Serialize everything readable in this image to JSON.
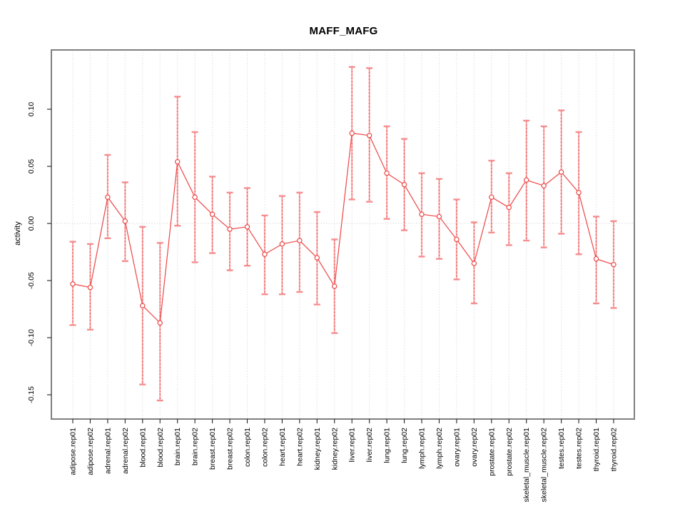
{
  "chart_data": {
    "type": "line",
    "title": "MAFF_MAFG",
    "ylabel": "activity",
    "xlabel": "",
    "legend": "none",
    "grid": "dotted vertical line per category and dotted horizontal line at zero",
    "ylim": [
      -0.171,
      0.152
    ],
    "yticks": [
      {
        "value": 0.1,
        "label": "0.10"
      },
      {
        "value": 0.05,
        "label": "0.05"
      },
      {
        "value": 0.0,
        "label": "0.00"
      },
      {
        "value": -0.05,
        "label": "-0.05"
      },
      {
        "value": -0.1,
        "label": "-0.10"
      },
      {
        "value": -0.15,
        "label": "-0.15"
      }
    ],
    "categories": [
      "adipose.rep01",
      "adipose.rep02",
      "adrenal.rep01",
      "adrenal.rep02",
      "blood.rep01",
      "blood.rep02",
      "brain.rep01",
      "brain.rep02",
      "breast.rep01",
      "breast.rep02",
      "colon.rep01",
      "colon.rep02",
      "heart.rep01",
      "heart.rep02",
      "kidney.rep01",
      "kidney.rep02",
      "liver.rep01",
      "liver.rep02",
      "lung.rep01",
      "lung.rep02",
      "lymph.rep01",
      "lymph.rep02",
      "ovary.rep01",
      "ovary.rep02",
      "prostate.rep01",
      "prostate.rep02",
      "skeletal_muscle.rep01",
      "skeletal_muscle.rep02",
      "testes.rep01",
      "testes.rep02",
      "thyroid.rep01",
      "thyroid.rep02"
    ],
    "series": [
      {
        "name": "activity",
        "means": [
          -0.053,
          -0.056,
          0.023,
          0.002,
          -0.072,
          -0.087,
          0.054,
          0.023,
          0.008,
          -0.005,
          -0.003,
          -0.027,
          -0.018,
          -0.015,
          -0.03,
          -0.055,
          0.079,
          0.077,
          0.044,
          0.034,
          0.008,
          0.006,
          -0.014,
          -0.035,
          0.023,
          0.014,
          0.038,
          0.033,
          0.045,
          0.027,
          -0.031,
          -0.036
        ],
        "lower": [
          -0.089,
          -0.093,
          -0.013,
          -0.033,
          -0.141,
          -0.155,
          -0.002,
          -0.034,
          -0.026,
          -0.041,
          -0.037,
          -0.062,
          -0.062,
          -0.06,
          -0.071,
          -0.096,
          0.021,
          0.019,
          0.004,
          -0.006,
          -0.029,
          -0.031,
          -0.049,
          -0.07,
          -0.008,
          -0.019,
          -0.015,
          -0.021,
          -0.009,
          -0.027,
          -0.07,
          -0.074
        ],
        "upper": [
          -0.016,
          -0.018,
          0.06,
          0.036,
          -0.003,
          -0.017,
          0.111,
          0.08,
          0.041,
          0.027,
          0.031,
          0.007,
          0.024,
          0.027,
          0.01,
          -0.014,
          0.137,
          0.136,
          0.085,
          0.074,
          0.044,
          0.039,
          0.021,
          0.001,
          0.055,
          0.044,
          0.09,
          0.085,
          0.099,
          0.08,
          0.006,
          0.002
        ]
      }
    ],
    "colors": {
      "point_line": "#ee4c4c",
      "errorbar_dash": "#ee5556",
      "errorbar_underlay": "#f8a3a3",
      "errorbar_cap": "#f58e8f",
      "gridline": "#d2d2d2",
      "zero_line": "#c8c8c8",
      "frame": "#7f7f7f",
      "tick": "#222222"
    }
  }
}
